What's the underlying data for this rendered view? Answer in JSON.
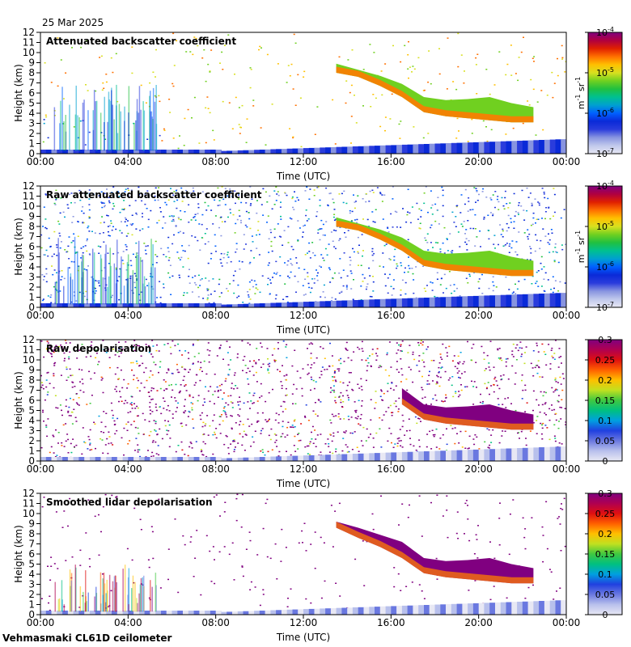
{
  "date": "25 Mar 2025",
  "footer": "Vehmasmaki CL61D ceilometer",
  "colors": {
    "backscatter": [
      "#e8e8f4",
      "#c0c8ec",
      "#8894e0",
      "#2a3cdc",
      "#0a2ad8",
      "#0060ff",
      "#00a0d0",
      "#00c090",
      "#20c040",
      "#70d020",
      "#d8e020",
      "#ffc000",
      "#ff7000",
      "#e02000",
      "#b00040",
      "#800080"
    ],
    "depol": [
      "#e8e8f4",
      "#b8c0ec",
      "#6a78e0",
      "#2040e0",
      "#00a0e0",
      "#00c080",
      "#40c840",
      "#c0e020",
      "#ffc000",
      "#ff6000",
      "#e01010",
      "#b00050",
      "#800080"
    ],
    "cloud": "#ff7a00",
    "cloud_core": "#d01818",
    "depol_cloud": "#800080"
  },
  "chart_data": [
    {
      "type": "heatmap",
      "title": "Attenuated backscatter coefficient",
      "xlabel": "Time (UTC)",
      "ylabel": "Height (km)",
      "x_ticks": [
        "00:00",
        "04:00",
        "08:00",
        "12:00",
        "16:00",
        "20:00",
        "00:00"
      ],
      "xlim_hours": [
        0,
        24
      ],
      "ylim": [
        0,
        12
      ],
      "y_ticks": [
        0,
        1,
        2,
        3,
        4,
        5,
        6,
        7,
        8,
        9,
        10,
        11,
        12
      ],
      "colorbar": {
        "scale": "log",
        "labels": [
          {
            "base": "10",
            "exp": "-4",
            "value": 0.0001
          },
          {
            "base": "10",
            "exp": "-5",
            "value": 1e-05
          },
          {
            "base": "10",
            "exp": "-6",
            "value": 1e-06
          },
          {
            "base": "10",
            "exp": "-7",
            "value": 1e-07
          }
        ],
        "unit": {
          "a": "m",
          "a_exp": "-1",
          "b": "sr",
          "b_exp": "-1"
        }
      },
      "cloud_layer": {
        "time_hours": [
          13.5,
          14.5,
          15.5,
          16.5,
          17.5,
          18.5,
          19.5,
          20.5,
          21.5,
          22.5
        ],
        "top_km": [
          8.9,
          8.3,
          7.7,
          6.9,
          5.6,
          5.3,
          5.4,
          5.6,
          5.0,
          4.6
        ],
        "base_km": [
          8.0,
          7.6,
          6.7,
          5.6,
          4.1,
          3.7,
          3.5,
          3.3,
          3.1,
          3.1
        ]
      }
    },
    {
      "type": "heatmap",
      "title": "Raw attenuated backscatter coefficient",
      "xlabel": "Time (UTC)",
      "ylabel": "Height (km)",
      "x_ticks": [
        "00:00",
        "04:00",
        "08:00",
        "12:00",
        "16:00",
        "20:00",
        "00:00"
      ],
      "xlim_hours": [
        0,
        24
      ],
      "ylim": [
        0,
        12
      ],
      "y_ticks": [
        0,
        1,
        2,
        3,
        4,
        5,
        6,
        7,
        8,
        9,
        10,
        11,
        12
      ],
      "colorbar": {
        "scale": "log",
        "labels": [
          {
            "base": "10",
            "exp": "-4",
            "value": 0.0001
          },
          {
            "base": "10",
            "exp": "-5",
            "value": 1e-05
          },
          {
            "base": "10",
            "exp": "-6",
            "value": 1e-06
          },
          {
            "base": "10",
            "exp": "-7",
            "value": 1e-07
          }
        ],
        "unit": {
          "a": "m",
          "a_exp": "-1",
          "b": "sr",
          "b_exp": "-1"
        }
      },
      "cloud_layer": {
        "time_hours": [
          13.5,
          14.5,
          15.5,
          16.5,
          17.5,
          18.5,
          19.5,
          20.5,
          21.5,
          22.5
        ],
        "top_km": [
          8.9,
          8.3,
          7.7,
          6.9,
          5.6,
          5.3,
          5.4,
          5.6,
          5.0,
          4.6
        ],
        "base_km": [
          8.0,
          7.6,
          6.7,
          5.6,
          4.1,
          3.7,
          3.5,
          3.3,
          3.1,
          3.1
        ]
      }
    },
    {
      "type": "heatmap",
      "title": "Raw depolarisation",
      "xlabel": "Time (UTC)",
      "ylabel": "Height (km)",
      "x_ticks": [
        "00:00",
        "04:00",
        "08:00",
        "12:00",
        "16:00",
        "20:00",
        "00:00"
      ],
      "xlim_hours": [
        0,
        24
      ],
      "ylim": [
        0,
        12
      ],
      "y_ticks": [
        0,
        1,
        2,
        3,
        4,
        5,
        6,
        7,
        8,
        9,
        10,
        11,
        12
      ],
      "colorbar": {
        "scale": "linear",
        "range": [
          0,
          0.3
        ],
        "labels": [
          "0.3",
          "0.25",
          "0.2",
          "0.15",
          "0.1",
          "0.05",
          "0"
        ],
        "values": [
          0.3,
          0.25,
          0.2,
          0.15,
          0.1,
          0.05,
          0
        ]
      },
      "cloud_layer": {
        "time_hours": [
          16.5,
          17.5,
          18.5,
          19.5,
          20.5,
          21.5,
          22.5
        ],
        "top_km": [
          7.2,
          5.6,
          5.3,
          5.4,
          5.6,
          5.0,
          4.6
        ],
        "base_km": [
          5.6,
          4.1,
          3.7,
          3.5,
          3.3,
          3.1,
          3.1
        ]
      }
    },
    {
      "type": "heatmap",
      "title": "Smoothed lidar depolarisation",
      "xlabel": "Time (UTC)",
      "ylabel": "Height (km)",
      "x_ticks": [
        "00:00",
        "04:00",
        "08:00",
        "12:00",
        "16:00",
        "20:00",
        "00:00"
      ],
      "xlim_hours": [
        0,
        24
      ],
      "ylim": [
        0,
        12
      ],
      "y_ticks": [
        0,
        1,
        2,
        3,
        4,
        5,
        6,
        7,
        8,
        9,
        10,
        11,
        12
      ],
      "colorbar": {
        "scale": "linear",
        "range": [
          0,
          0.3
        ],
        "labels": [
          "0.3",
          "0.25",
          "0.2",
          "0.15",
          "0.1",
          "0.05",
          "0"
        ],
        "values": [
          0.3,
          0.25,
          0.2,
          0.15,
          0.1,
          0.05,
          0
        ]
      },
      "cloud_layer": {
        "time_hours": [
          13.5,
          14.5,
          15.5,
          16.5,
          17.5,
          18.5,
          19.5,
          20.5,
          21.5,
          22.5
        ],
        "top_km": [
          9.2,
          8.6,
          7.9,
          7.2,
          5.6,
          5.3,
          5.4,
          5.6,
          5.0,
          4.6
        ],
        "base_km": [
          8.6,
          7.6,
          6.7,
          5.6,
          4.1,
          3.7,
          3.5,
          3.3,
          3.1,
          3.1
        ]
      }
    }
  ]
}
